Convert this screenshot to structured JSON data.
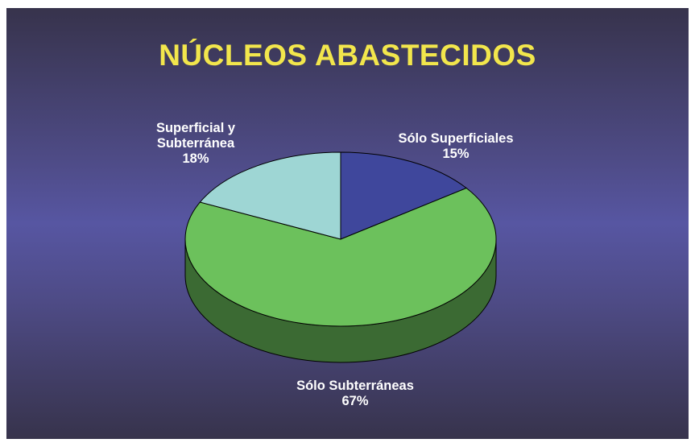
{
  "chart_data": {
    "type": "pie3d",
    "title": "NÚCLEOS ABASTECIDOS",
    "categories": [
      "Sólo Superficiales",
      "Sólo Subterráneas",
      "Superficial y Subterránea"
    ],
    "values": [
      15,
      67,
      18
    ],
    "value_labels": [
      "15%",
      "67%",
      "18%"
    ],
    "colors": [
      "#3f479c",
      "#6cc15c",
      "#9ed6d4"
    ]
  }
}
